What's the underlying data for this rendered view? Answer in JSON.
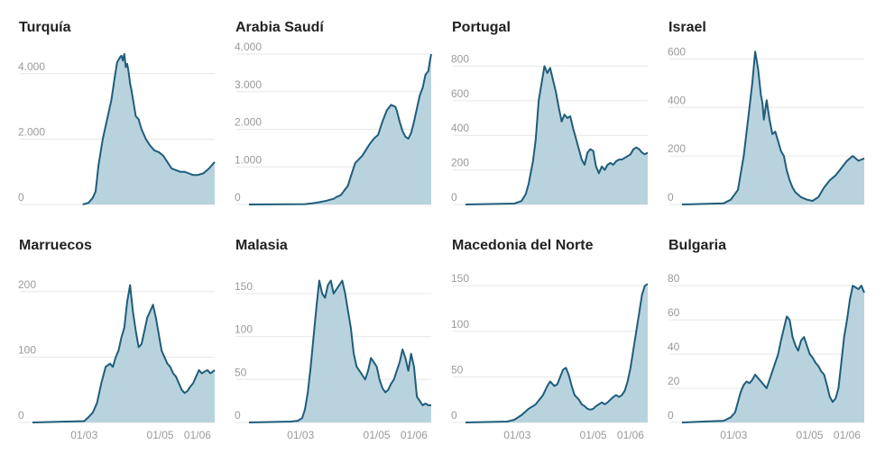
{
  "chart_data": [
    {
      "type": "area",
      "title": "Turquía",
      "y_ticks": [
        0,
        2000,
        4000
      ],
      "y_tick_labels": [
        "0",
        "2.000",
        "4.000"
      ],
      "ylim": [
        0,
        4600
      ],
      "xlim": [
        1,
        128
      ],
      "x_ticks": [],
      "x_tick_labels": [],
      "color": "#1f5d7a",
      "fill": "#b9d3de",
      "x": [
        36,
        40,
        43,
        45,
        47,
        50,
        53,
        56,
        58,
        60,
        62,
        63,
        64,
        65,
        66,
        67,
        68,
        69,
        70,
        73,
        75,
        77,
        80,
        83,
        86,
        89,
        92,
        95,
        98,
        101,
        104,
        107,
        110,
        113,
        116,
        120,
        124,
        126,
        128
      ],
      "y": [
        0,
        50,
        200,
        400,
        1200,
        2000,
        2600,
        3200,
        3800,
        4350,
        4500,
        4550,
        4400,
        4600,
        4200,
        4300,
        4050,
        3700,
        3500,
        2700,
        2600,
        2300,
        2000,
        1800,
        1650,
        1600,
        1500,
        1300,
        1100,
        1050,
        1000,
        1000,
        950,
        900,
        900,
        950,
        1100,
        1200,
        1300
      ]
    },
    {
      "type": "area",
      "title": "Arabia Saudí",
      "y_ticks": [
        0,
        1000,
        2000,
        3000,
        4000
      ],
      "y_tick_labels": [
        "0",
        "1.000",
        "2.000",
        "3.000",
        "4.000"
      ],
      "ylim": [
        0,
        4000
      ],
      "xlim": [
        1,
        128
      ],
      "x_ticks": [],
      "x_tick_labels": [],
      "color": "#1f5d7a",
      "fill": "#b9d3de",
      "x": [
        1,
        40,
        45,
        50,
        55,
        60,
        62,
        65,
        70,
        72,
        75,
        80,
        85,
        88,
        91,
        94,
        97,
        100,
        103,
        104,
        105,
        106,
        108,
        110,
        112,
        114,
        116,
        118,
        120,
        122,
        124,
        126,
        127,
        128
      ],
      "y": [
        0,
        10,
        30,
        60,
        100,
        150,
        200,
        250,
        500,
        750,
        1100,
        1300,
        1600,
        1750,
        1850,
        2200,
        2500,
        2650,
        2600,
        2500,
        2350,
        2200,
        1950,
        1800,
        1750,
        1900,
        2200,
        2550,
        2900,
        3100,
        3450,
        3550,
        3800,
        4000
      ]
    },
    {
      "type": "area",
      "title": "Portugal",
      "y_ticks": [
        0,
        200,
        400,
        600,
        800
      ],
      "y_tick_labels": [
        "0",
        "200",
        "400",
        "600",
        "800"
      ],
      "ylim": [
        0,
        870
      ],
      "xlim": [
        1,
        128
      ],
      "x_ticks": [],
      "x_tick_labels": [],
      "color": "#1f5d7a",
      "fill": "#b9d3de",
      "x": [
        1,
        35,
        40,
        43,
        45,
        48,
        50,
        52,
        54,
        56,
        58,
        60,
        62,
        64,
        66,
        68,
        70,
        72,
        74,
        76,
        78,
        80,
        82,
        84,
        86,
        88,
        90,
        92,
        94,
        96,
        98,
        100,
        102,
        104,
        106,
        108,
        110,
        112,
        114,
        116,
        118,
        120,
        122,
        124,
        126,
        128
      ],
      "y": [
        0,
        5,
        20,
        60,
        120,
        250,
        380,
        600,
        700,
        800,
        760,
        790,
        720,
        650,
        560,
        480,
        520,
        500,
        510,
        440,
        380,
        320,
        260,
        230,
        300,
        320,
        310,
        220,
        180,
        220,
        200,
        230,
        240,
        230,
        250,
        260,
        260,
        270,
        280,
        290,
        320,
        330,
        320,
        300,
        290,
        300
      ]
    },
    {
      "type": "area",
      "title": "Israel",
      "y_ticks": [
        0,
        200,
        400,
        600
      ],
      "y_tick_labels": [
        "0",
        "200",
        "400",
        "600"
      ],
      "ylim": [
        0,
        620
      ],
      "xlim": [
        1,
        128
      ],
      "x_ticks": [],
      "x_tick_labels": [],
      "color": "#1f5d7a",
      "fill": "#b9d3de",
      "x": [
        1,
        30,
        35,
        40,
        44,
        47,
        50,
        52,
        54,
        56,
        57,
        58,
        60,
        62,
        64,
        66,
        68,
        70,
        72,
        74,
        76,
        78,
        80,
        84,
        88,
        92,
        96,
        100,
        104,
        108,
        112,
        116,
        120,
        124,
        128
      ],
      "y": [
        0,
        5,
        20,
        60,
        200,
        350,
        500,
        630,
        560,
        450,
        420,
        350,
        430,
        350,
        290,
        300,
        260,
        220,
        200,
        140,
        100,
        70,
        50,
        30,
        20,
        15,
        30,
        70,
        100,
        120,
        150,
        180,
        200,
        180,
        190
      ]
    },
    {
      "type": "area",
      "title": "Marruecos",
      "y_ticks": [
        0,
        100,
        200
      ],
      "y_tick_labels": [
        "0",
        "100",
        "200"
      ],
      "ylim": [
        0,
        230
      ],
      "xlim": [
        1,
        128
      ],
      "x_ticks": [
        37,
        90,
        116
      ],
      "x_tick_labels": [
        "01/03",
        "01/05",
        "01/06"
      ],
      "color": "#1f5d7a",
      "fill": "#b9d3de",
      "x": [
        1,
        37,
        40,
        43,
        46,
        49,
        52,
        55,
        57,
        59,
        61,
        63,
        65,
        67,
        69,
        71,
        73,
        75,
        77,
        79,
        81,
        83,
        85,
        87,
        89,
        91,
        93,
        95,
        97,
        99,
        101,
        103,
        105,
        107,
        109,
        111,
        113,
        115,
        117,
        119,
        121,
        123,
        125,
        128
      ],
      "y": [
        0,
        2,
        8,
        15,
        30,
        60,
        85,
        90,
        85,
        100,
        110,
        130,
        145,
        185,
        210,
        170,
        140,
        115,
        120,
        140,
        160,
        170,
        180,
        160,
        135,
        110,
        100,
        90,
        85,
        75,
        70,
        60,
        50,
        45,
        48,
        55,
        60,
        70,
        80,
        75,
        78,
        80,
        75,
        80
      ]
    },
    {
      "type": "area",
      "title": "Malasia",
      "y_ticks": [
        0,
        50,
        100,
        150
      ],
      "y_tick_labels": [
        "0",
        "50",
        "100",
        "150"
      ],
      "ylim": [
        0,
        175
      ],
      "xlim": [
        1,
        128
      ],
      "x_ticks": [
        37,
        90,
        116
      ],
      "x_tick_labels": [
        "01/03",
        "01/05",
        "01/06"
      ],
      "color": "#1f5d7a",
      "fill": "#b9d3de",
      "x": [
        1,
        30,
        35,
        38,
        40,
        42,
        44,
        46,
        48,
        50,
        52,
        54,
        56,
        58,
        60,
        62,
        64,
        66,
        68,
        70,
        72,
        74,
        76,
        78,
        80,
        82,
        84,
        86,
        88,
        90,
        92,
        94,
        96,
        98,
        100,
        102,
        104,
        106,
        108,
        110,
        112,
        114,
        116,
        118,
        120,
        122,
        124,
        126,
        128
      ],
      "y": [
        0,
        1,
        2,
        5,
        15,
        35,
        65,
        100,
        135,
        165,
        150,
        145,
        160,
        165,
        150,
        155,
        160,
        165,
        150,
        130,
        110,
        80,
        65,
        60,
        55,
        50,
        60,
        75,
        70,
        65,
        50,
        40,
        35,
        38,
        45,
        50,
        60,
        70,
        85,
        75,
        60,
        80,
        65,
        30,
        25,
        20,
        22,
        20,
        20
      ]
    },
    {
      "type": "area",
      "title": "Macedonia del Norte",
      "y_ticks": [
        0,
        50,
        100,
        150
      ],
      "y_tick_labels": [
        "0",
        "50",
        "100",
        "150"
      ],
      "ylim": [
        0,
        165
      ],
      "xlim": [
        1,
        128
      ],
      "x_ticks": [
        37,
        90,
        116
      ],
      "x_tick_labels": [
        "01/03",
        "01/05",
        "01/06"
      ],
      "color": "#1f5d7a",
      "fill": "#b9d3de",
      "x": [
        1,
        30,
        35,
        40,
        45,
        50,
        55,
        58,
        60,
        63,
        65,
        67,
        69,
        71,
        73,
        75,
        77,
        80,
        82,
        84,
        86,
        88,
        90,
        92,
        94,
        96,
        98,
        100,
        102,
        104,
        106,
        108,
        110,
        112,
        114,
        116,
        118,
        120,
        122,
        124,
        126,
        128
      ],
      "y": [
        0,
        1,
        3,
        8,
        15,
        20,
        30,
        40,
        45,
        40,
        42,
        50,
        58,
        60,
        52,
        40,
        30,
        25,
        20,
        18,
        15,
        14,
        15,
        18,
        20,
        22,
        20,
        22,
        25,
        28,
        30,
        28,
        30,
        35,
        45,
        60,
        80,
        100,
        120,
        140,
        150,
        152
      ]
    },
    {
      "type": "area",
      "title": "Bulgaria",
      "y_ticks": [
        0,
        20,
        40,
        60,
        80
      ],
      "y_tick_labels": [
        "0",
        "20",
        "40",
        "60",
        "80"
      ],
      "ylim": [
        0,
        88
      ],
      "xlim": [
        1,
        128
      ],
      "x_ticks": [
        37,
        90,
        116
      ],
      "x_tick_labels": [
        "01/03",
        "01/05",
        "01/06"
      ],
      "color": "#1f5d7a",
      "fill": "#b9d3de",
      "x": [
        1,
        30,
        35,
        38,
        40,
        42,
        44,
        46,
        48,
        50,
        52,
        54,
        56,
        58,
        60,
        62,
        64,
        66,
        68,
        70,
        72,
        74,
        76,
        78,
        80,
        82,
        84,
        86,
        88,
        90,
        92,
        94,
        96,
        98,
        100,
        102,
        104,
        106,
        108,
        110,
        112,
        114,
        116,
        118,
        120,
        122,
        124,
        126,
        128
      ],
      "y": [
        0,
        1,
        3,
        6,
        12,
        18,
        22,
        24,
        23,
        25,
        28,
        26,
        24,
        22,
        20,
        25,
        30,
        35,
        40,
        48,
        55,
        62,
        60,
        50,
        45,
        42,
        48,
        50,
        45,
        40,
        38,
        35,
        33,
        30,
        28,
        22,
        15,
        12,
        14,
        20,
        35,
        50,
        60,
        72,
        80,
        79,
        78,
        80,
        76
      ]
    }
  ]
}
